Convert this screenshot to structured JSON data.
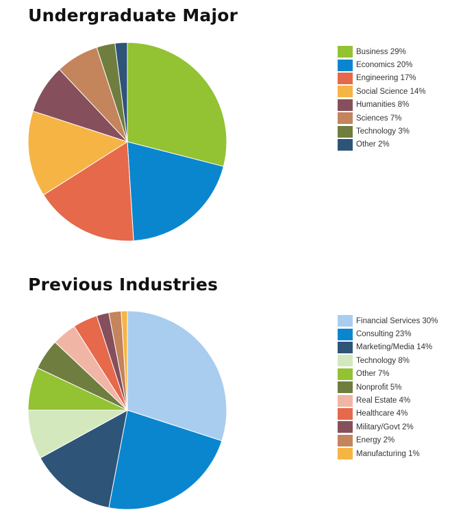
{
  "chart_data": [
    {
      "type": "pie",
      "title": "Undergraduate Major",
      "categories": [
        "Business",
        "Economics",
        "Engineering",
        "Social Science",
        "Humanities",
        "Sciences",
        "Technology",
        "Other"
      ],
      "values": [
        29,
        20,
        17,
        14,
        8,
        7,
        3,
        2
      ],
      "legend_labels": [
        "Business 29%",
        "Economics 20%",
        "Engineering 17%",
        "Social Science 14%",
        "Humanities 8%",
        "Sciences 7%",
        "Technology 3%",
        "Other 2%"
      ],
      "colors": [
        "#93c233",
        "#0a86cf",
        "#e5694a",
        "#f6b444",
        "#864f5c",
        "#c4845c",
        "#6f7d3f",
        "#2e5478"
      ],
      "legend_position": "right"
    },
    {
      "type": "pie",
      "title": "Previous Industries",
      "categories": [
        "Financial Services",
        "Consulting",
        "Marketing/Media",
        "Technology",
        "Other",
        "Nonprofit",
        "Real Estate",
        "Healthcare",
        "Military/Govt",
        "Energy",
        "Manufacturing"
      ],
      "values": [
        30,
        23,
        14,
        8,
        7,
        5,
        4,
        4,
        2,
        2,
        1
      ],
      "legend_labels": [
        "Financial Services 30%",
        "Consulting 23%",
        "Marketing/Media 14%",
        "Technology 8%",
        "Other 7%",
        "Nonprofit 5%",
        "Real Estate 4%",
        "Healthcare 4%",
        "Military/Govt 2%",
        "Energy 2%",
        "Manufacturing 1%"
      ],
      "colors": [
        "#a9cdee",
        "#0a86cf",
        "#2e5478",
        "#d4e8bd",
        "#93c233",
        "#6f7d3f",
        "#f1b5a6",
        "#e5694a",
        "#864f5c",
        "#c4845c",
        "#f6b444"
      ],
      "legend_position": "right"
    }
  ]
}
